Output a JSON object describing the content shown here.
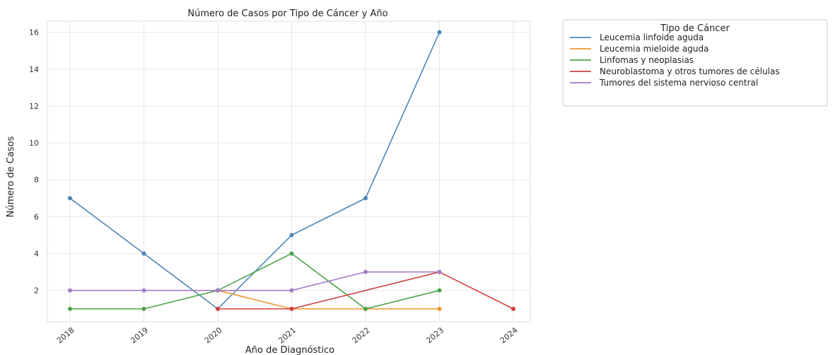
{
  "chart_data": {
    "type": "line",
    "title": "Número de Casos por Tipo de Cáncer y Año",
    "xlabel": "Año de Diagnóstico",
    "ylabel": "Número de Casos",
    "categories": [
      "2018",
      "2019",
      "2020",
      "2021",
      "2022",
      "2023",
      "2024"
    ],
    "ylim": [
      0.3,
      16.6
    ],
    "yticks": [
      2,
      4,
      6,
      8,
      10,
      12,
      14,
      16
    ],
    "grid": true,
    "legend_title": "Tipo de Cáncer",
    "legend_position": "outside-top-right",
    "series": [
      {
        "name": "Leucemia linfoide aguda",
        "color": "#4c86b8",
        "points": [
          [
            "2018",
            7
          ],
          [
            "2019",
            4
          ],
          [
            "2020",
            1
          ],
          [
            "2021",
            5
          ],
          [
            "2022",
            7
          ],
          [
            "2023",
            16
          ]
        ]
      },
      {
        "name": "Leucemia mieloide aguda",
        "color": "#f0952e",
        "points": [
          [
            "2020",
            2
          ],
          [
            "2021",
            1
          ],
          [
            "2022",
            1
          ],
          [
            "2023",
            1
          ]
        ]
      },
      {
        "name": "Linfomas y neoplasias",
        "color": "#4aa44a",
        "points": [
          [
            "2018",
            1
          ],
          [
            "2019",
            1
          ],
          [
            "2020",
            2
          ],
          [
            "2021",
            4
          ],
          [
            "2022",
            1
          ],
          [
            "2023",
            2
          ]
        ]
      },
      {
        "name": "Neuroblastoma y otros tumores de células",
        "color": "#d04040",
        "points": [
          [
            "2020",
            1
          ],
          [
            "2021",
            1
          ],
          [
            "2023",
            3
          ],
          [
            "2024",
            1
          ]
        ]
      },
      {
        "name": "Tumores del sistema nervioso central",
        "color": "#a57cc4",
        "points": [
          [
            "2018",
            2
          ],
          [
            "2019",
            2
          ],
          [
            "2020",
            2
          ],
          [
            "2021",
            2
          ],
          [
            "2022",
            3
          ],
          [
            "2023",
            3
          ]
        ]
      }
    ]
  }
}
